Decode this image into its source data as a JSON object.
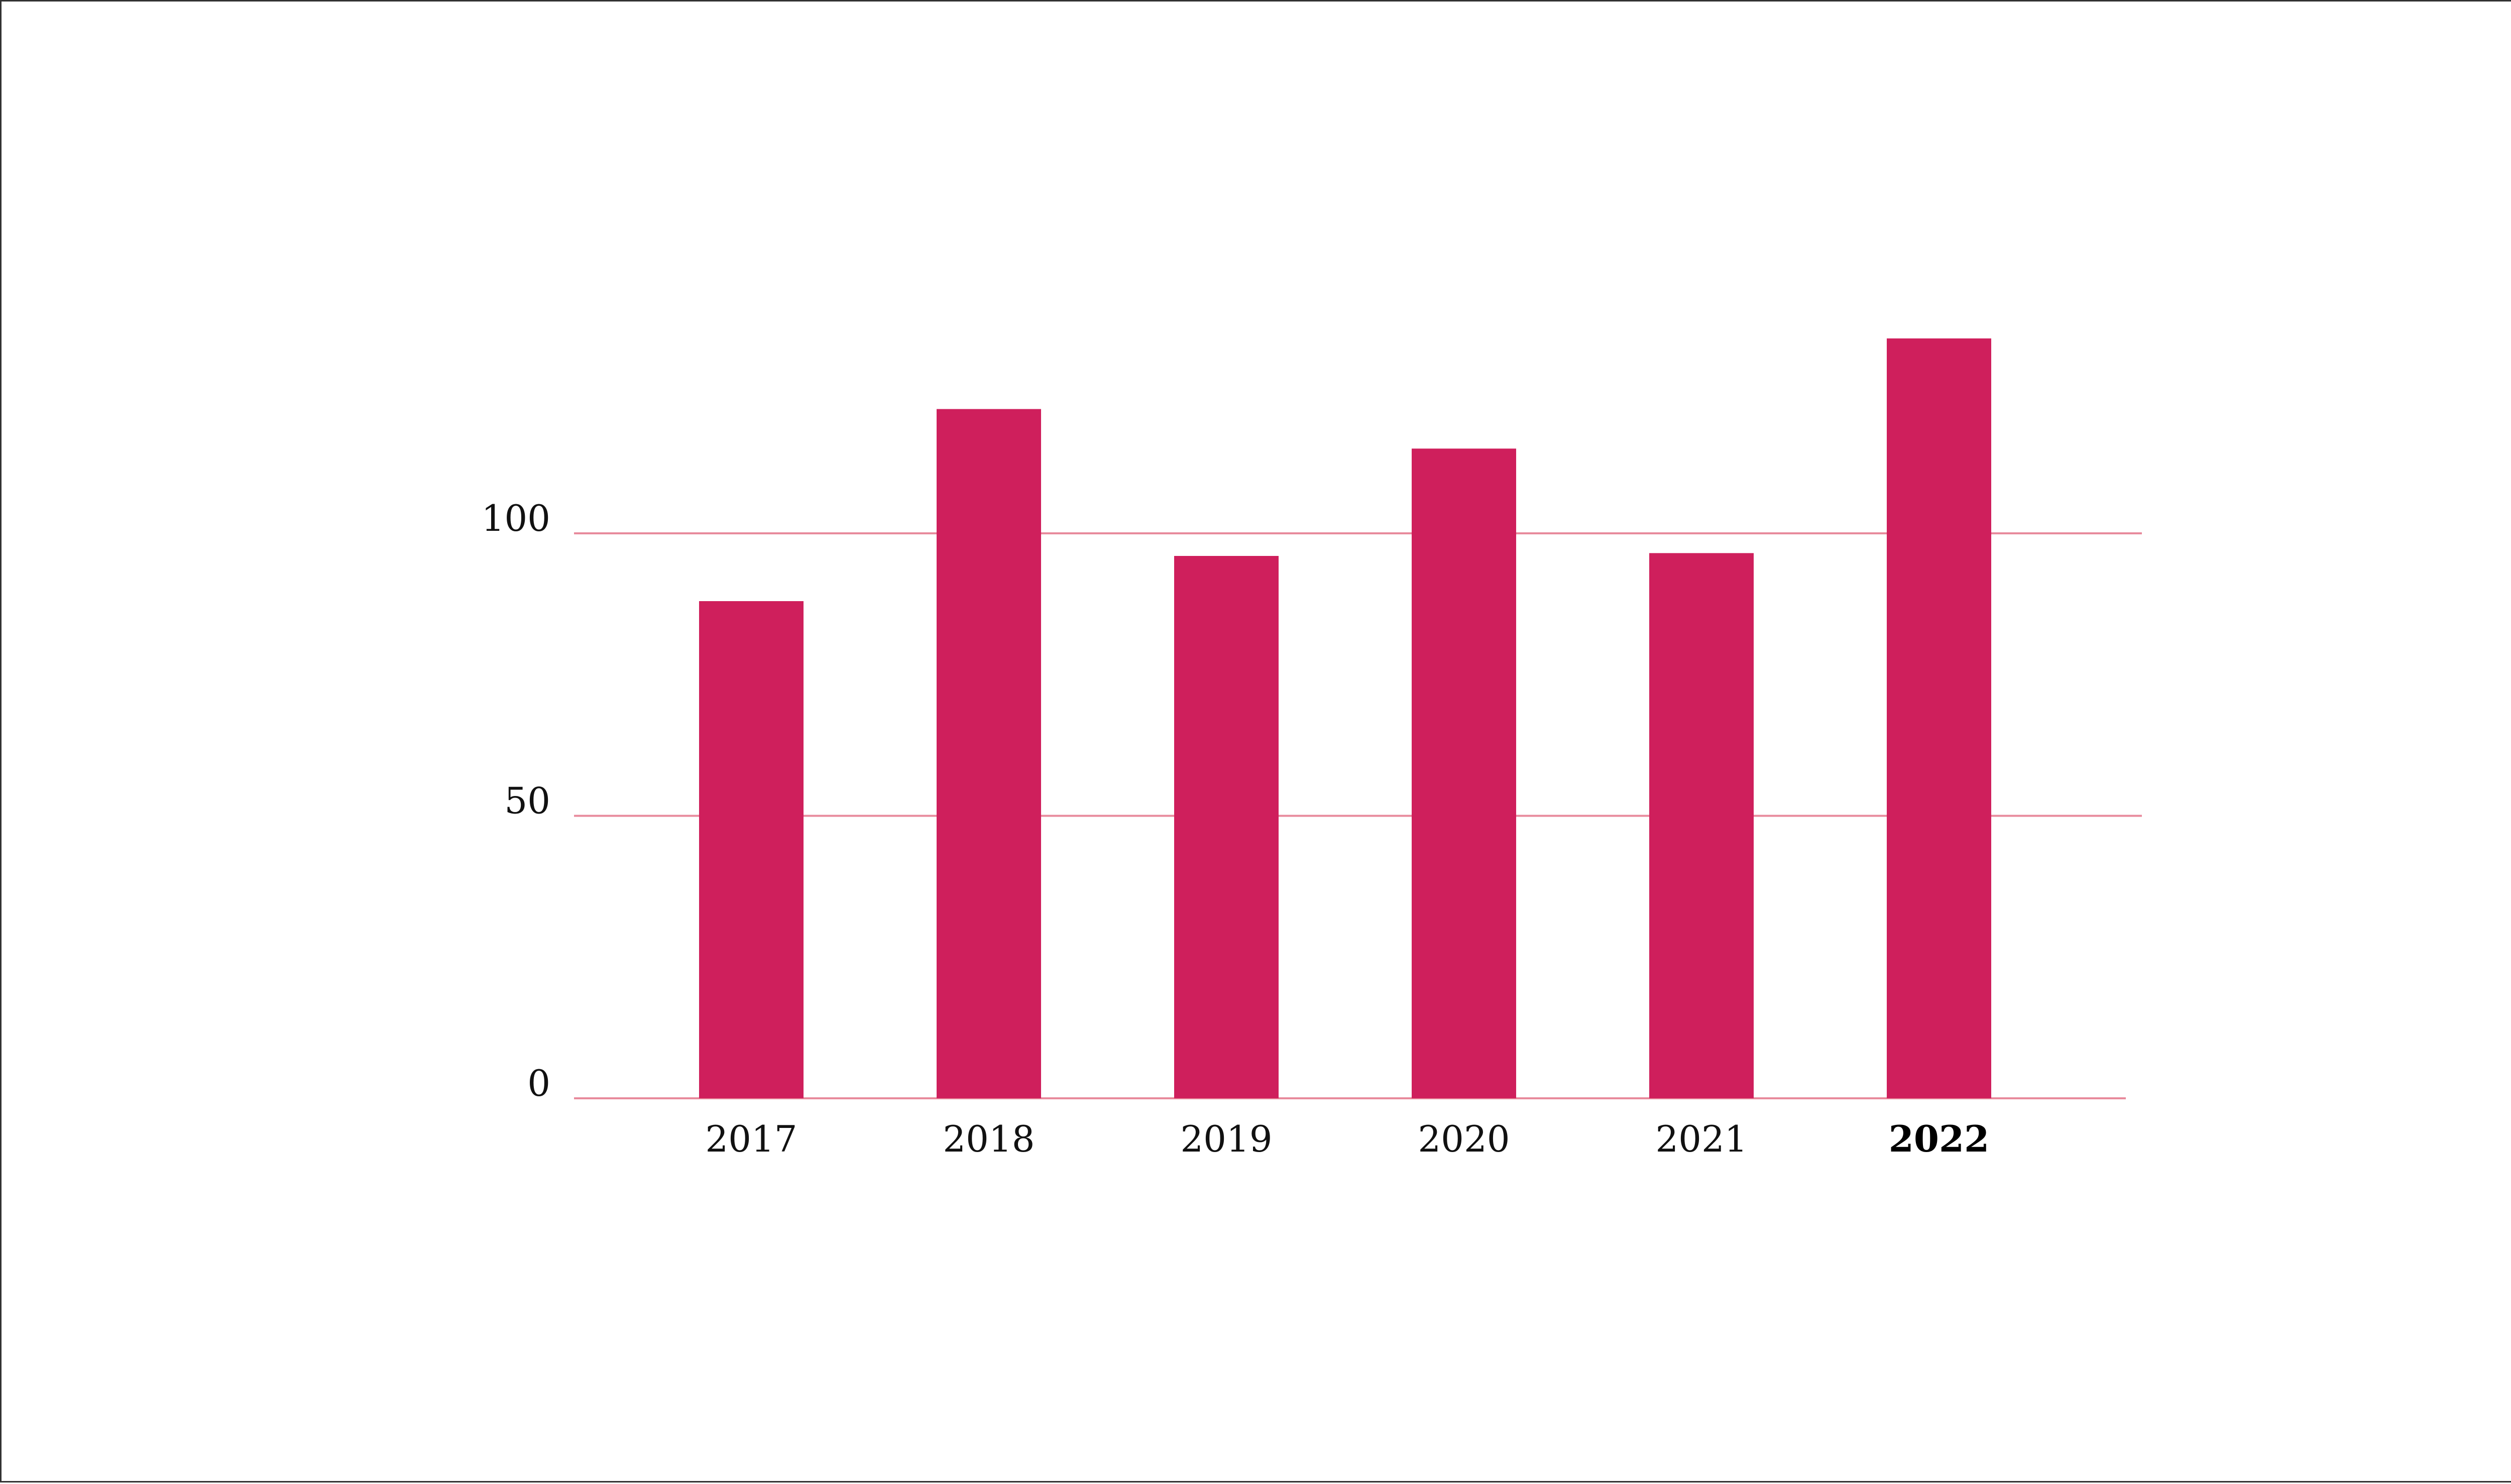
{
  "chart_data": {
    "type": "bar",
    "title": "",
    "xlabel": "",
    "ylabel": "",
    "categories": [
      "2017",
      "2018",
      "2019",
      "2020",
      "2021",
      "2022"
    ],
    "values": [
      88,
      122,
      96,
      115,
      96.5,
      134.5
    ],
    "highlight_category": "2022",
    "ylim": [
      0,
      140
    ],
    "yticks": [
      0,
      50,
      100
    ],
    "ytick_labels": [
      "0",
      "50",
      "100"
    ],
    "grid": true,
    "legend": "none",
    "bar_color": "#cf1f5c",
    "grid_color": "#e88a9c",
    "text_color": "#111111"
  }
}
